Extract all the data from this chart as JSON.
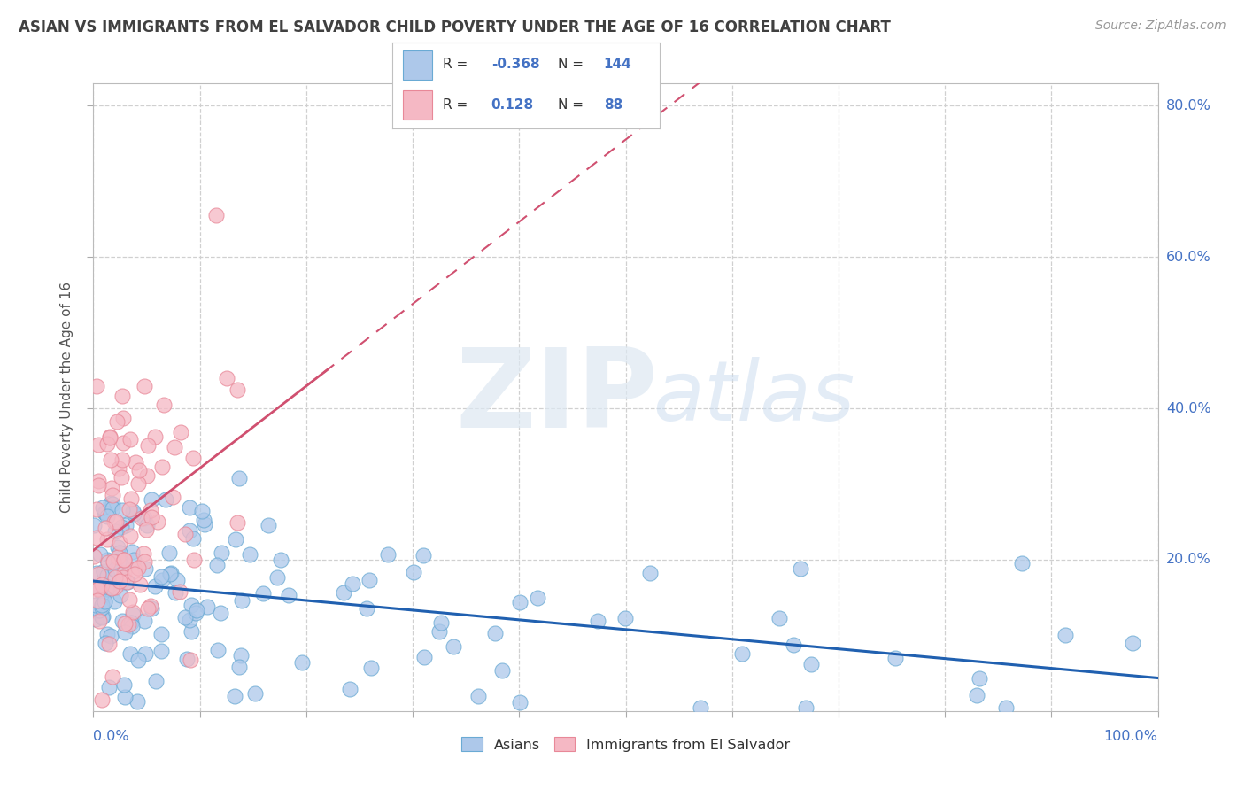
{
  "title": "ASIAN VS IMMIGRANTS FROM EL SALVADOR CHILD POVERTY UNDER THE AGE OF 16 CORRELATION CHART",
  "source": "Source: ZipAtlas.com",
  "ylabel": "Child Poverty Under the Age of 16",
  "R_asian": -0.368,
  "N_asian": 144,
  "R_salvador": 0.128,
  "N_salvador": 88,
  "asian_face_color": "#adc8ea",
  "asian_edge_color": "#6aaad4",
  "salvador_face_color": "#f5b8c4",
  "salvador_edge_color": "#e88898",
  "asian_line_color": "#2060b0",
  "salvador_line_color": "#d05070",
  "background_color": "#ffffff",
  "grid_color": "#d0d0d0",
  "title_color": "#404040",
  "axis_value_color": "#4472c4",
  "legend_value_color": "#4472c4",
  "legend_label_asian": "Asians",
  "legend_label_salvador": "Immigrants from El Salvador",
  "xlim": [
    0.0,
    1.0
  ],
  "ylim": [
    0.0,
    0.83
  ],
  "ytick_vals": [
    0.2,
    0.4,
    0.6,
    0.8
  ],
  "ytick_labels": [
    "20.0%",
    "40.0%",
    "60.0%",
    "80.0%"
  ],
  "xtick_left_label": "0.0%",
  "xtick_right_label": "100.0%"
}
